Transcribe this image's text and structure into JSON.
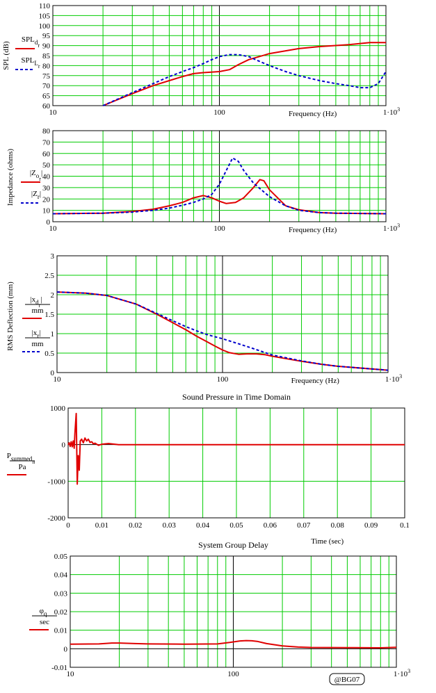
{
  "colors": {
    "grid": "#00cc00",
    "series_a": "#e00000",
    "series_b": "#0000cc",
    "axis": "#000000"
  },
  "watermark": "@BG07",
  "chart_data": [
    {
      "type": "line",
      "x_scale": "log",
      "xlim": [
        10,
        1000
      ],
      "ylim": [
        60,
        110
      ],
      "yticks": [
        60,
        65,
        70,
        75,
        80,
        85,
        90,
        95,
        100,
        105,
        110
      ],
      "xtick_labels": [
        "10",
        "100",
        "1·10³"
      ],
      "xlabel": "Frequency (Hz)",
      "ylabel": "SPL (dB)",
      "legend": [
        "SPL_d_r",
        "SPL_L_r"
      ],
      "series": [
        {
          "name": "SPL_d_r",
          "style": "solid",
          "x": [
            20,
            30,
            40,
            50,
            60,
            70,
            80,
            100,
            115,
            130,
            150,
            200,
            300,
            400,
            600,
            800,
            1000
          ],
          "y": [
            60,
            66,
            70,
            72.5,
            74.5,
            76,
            76.5,
            77,
            78,
            80.5,
            83,
            86,
            88.5,
            89.5,
            90.5,
            91.5,
            91.5
          ]
        },
        {
          "name": "SPL_L_r",
          "style": "dashed",
          "x": [
            20,
            30,
            40,
            50,
            60,
            70,
            80,
            90,
            100,
            115,
            130,
            150,
            170,
            200,
            250,
            300,
            400,
            500,
            600,
            700,
            800,
            900,
            1000
          ],
          "y": [
            60,
            66.5,
            71,
            74.5,
            77,
            79,
            81,
            83,
            84.5,
            85.5,
            85.5,
            84.5,
            82.5,
            80,
            77,
            75,
            72.5,
            71,
            70,
            69,
            69,
            71,
            77
          ]
        }
      ]
    },
    {
      "type": "line",
      "x_scale": "log",
      "xlim": [
        10,
        1000
      ],
      "ylim": [
        0,
        80
      ],
      "yticks": [
        0,
        10,
        20,
        30,
        40,
        50,
        60,
        70,
        80
      ],
      "xtick_labels": [
        "10",
        "100",
        "1·10³"
      ],
      "xlabel": "Frequency (Hz)",
      "ylabel": "Impedance (ohms)",
      "legend": [
        "|Z_o_r|",
        "|Z_r|"
      ],
      "series": [
        {
          "name": "|Z_o_r|",
          "style": "solid",
          "x": [
            10,
            20,
            30,
            40,
            50,
            60,
            70,
            80,
            90,
            100,
            110,
            125,
            140,
            160,
            175,
            185,
            200,
            250,
            300,
            400,
            500,
            1000
          ],
          "y": [
            7,
            7.5,
            9,
            11,
            14,
            17,
            21,
            23,
            21,
            18,
            16,
            17,
            21,
            30,
            37,
            36,
            28,
            14,
            10.5,
            8,
            7.5,
            7
          ]
        },
        {
          "name": "|Z_r|",
          "style": "dashed",
          "x": [
            10,
            20,
            30,
            40,
            50,
            60,
            70,
            80,
            90,
            100,
            110,
            120,
            130,
            140,
            160,
            200,
            250,
            300,
            400,
            500,
            1000
          ],
          "y": [
            7,
            7.5,
            8.5,
            10,
            12,
            14.5,
            17,
            20,
            24,
            33,
            45,
            56,
            53,
            45,
            34,
            22,
            14,
            10,
            8,
            7.5,
            7
          ]
        }
      ]
    },
    {
      "type": "line",
      "x_scale": "log",
      "xlim": [
        10,
        1000
      ],
      "ylim": [
        0,
        3
      ],
      "yticks": [
        0,
        0.5,
        1,
        1.5,
        2,
        2.5,
        3
      ],
      "xtick_labels": [
        "10",
        "100",
        "1·10³"
      ],
      "xlabel": "Frequency (Hz)",
      "ylabel": "RMS Deflection (mm)",
      "legend": [
        "|x_d_r| / mm",
        "|x_r| / mm"
      ],
      "series": [
        {
          "name": "|x_d_r| / mm",
          "style": "solid",
          "x": [
            10,
            15,
            20,
            30,
            40,
            50,
            60,
            70,
            80,
            90,
            100,
            110,
            125,
            140,
            160,
            180,
            200,
            300,
            400,
            500,
            1000
          ],
          "y": [
            2.07,
            2.04,
            1.98,
            1.76,
            1.5,
            1.28,
            1.1,
            0.93,
            0.8,
            0.68,
            0.58,
            0.51,
            0.47,
            0.48,
            0.48,
            0.46,
            0.42,
            0.29,
            0.21,
            0.16,
            0.06
          ]
        },
        {
          "name": "|x_r| / mm",
          "style": "dashed",
          "x": [
            10,
            15,
            20,
            30,
            40,
            50,
            60,
            70,
            80,
            90,
            100,
            125,
            150,
            200,
            300,
            400,
            500,
            1000
          ],
          "y": [
            2.07,
            2.04,
            1.98,
            1.76,
            1.52,
            1.33,
            1.18,
            1.07,
            0.98,
            0.92,
            0.87,
            0.74,
            0.63,
            0.45,
            0.3,
            0.21,
            0.16,
            0.06
          ]
        }
      ]
    },
    {
      "type": "line",
      "x_scale": "linear",
      "title": "Sound Pressure in Time Domain",
      "xlim": [
        0,
        0.1
      ],
      "ylim": [
        -2000,
        1000
      ],
      "xticks": [
        0,
        0.01,
        0.02,
        0.03,
        0.04,
        0.05,
        0.06,
        0.07,
        0.08,
        0.09,
        0.1
      ],
      "yticks": [
        -2000,
        -1000,
        0,
        1000
      ],
      "xlabel": "Time (sec)",
      "ylabel": "",
      "legend": [
        "P_summed_n / Pa"
      ],
      "series": [
        {
          "name": "P_summed_n / Pa",
          "style": "solid",
          "x": [
            0,
            0.0003,
            0.0006,
            0.0009,
            0.0012,
            0.0015,
            0.0018,
            0.002,
            0.0024,
            0.0027,
            0.003,
            0.0033,
            0.0036,
            0.004,
            0.0045,
            0.005,
            0.0055,
            0.006,
            0.0065,
            0.007,
            0.0075,
            0.008,
            0.009,
            0.01,
            0.012,
            0.015,
            0.1
          ],
          "y": [
            0,
            50,
            -50,
            80,
            -60,
            100,
            -100,
            300,
            850,
            -1080,
            -300,
            -700,
            100,
            150,
            50,
            180,
            100,
            150,
            60,
            80,
            20,
            40,
            -20,
            10,
            30,
            0,
            0
          ]
        }
      ]
    },
    {
      "type": "line",
      "x_scale": "log",
      "title": "System Group Delay",
      "xlim": [
        10,
        1000
      ],
      "ylim": [
        -0.01,
        0.05
      ],
      "yticks": [
        -0.01,
        0,
        0.01,
        0.02,
        0.03,
        0.04,
        0.05
      ],
      "xtick_labels": [
        "10",
        "100",
        "1·10³"
      ],
      "xlabel": "",
      "ylabel": "",
      "legend": [
        "φ_q / sec"
      ],
      "series": [
        {
          "name": "φ_q / sec",
          "style": "solid",
          "x": [
            10,
            15,
            18,
            20,
            25,
            30,
            50,
            80,
            95,
            110,
            120,
            130,
            140,
            160,
            200,
            250,
            300,
            500,
            800,
            1000
          ],
          "y": [
            0.0025,
            0.0026,
            0.0031,
            0.0031,
            0.0028,
            0.0026,
            0.0025,
            0.0026,
            0.0034,
            0.0042,
            0.0044,
            0.0043,
            0.004,
            0.0028,
            0.0015,
            0.0009,
            0.0007,
            0.0006,
            0.0005,
            0.0008
          ]
        }
      ]
    }
  ]
}
